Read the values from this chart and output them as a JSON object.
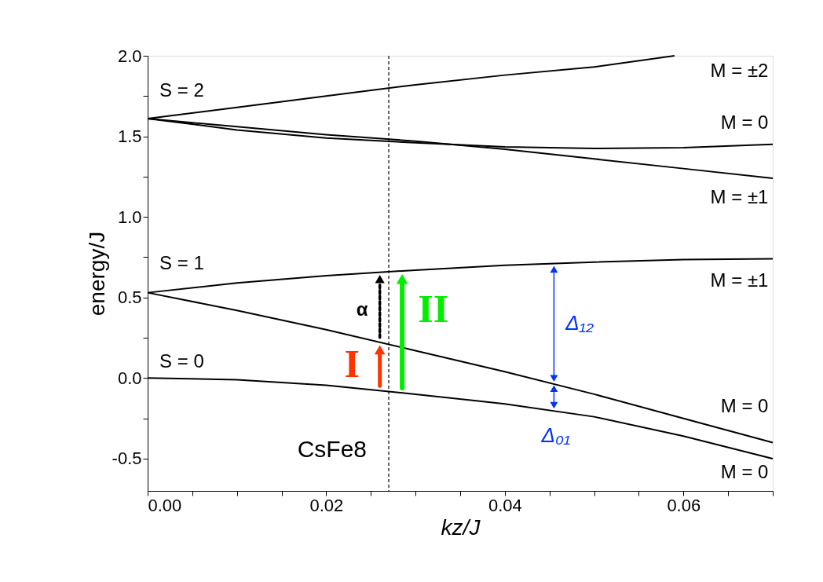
{
  "chart_data": {
    "type": "line",
    "xlabel": "kz/J",
    "ylabel": "energy/J",
    "xlim": [
      0,
      0.07
    ],
    "ylim": [
      -0.7,
      2.0
    ],
    "xticks": [
      {
        "value": 0,
        "label": "0.00"
      },
      {
        "value": 0.005,
        "label": null
      },
      {
        "value": 0.01,
        "label": null
      },
      {
        "value": 0.015,
        "label": null
      },
      {
        "value": 0.02,
        "label": "0.02"
      },
      {
        "value": 0.025,
        "label": null
      },
      {
        "value": 0.03,
        "label": null
      },
      {
        "value": 0.035,
        "label": null
      },
      {
        "value": 0.04,
        "label": "0.04"
      },
      {
        "value": 0.045,
        "label": null
      },
      {
        "value": 0.05,
        "label": null
      },
      {
        "value": 0.055,
        "label": null
      },
      {
        "value": 0.06,
        "label": "0.06"
      },
      {
        "value": 0.065,
        "label": null
      },
      {
        "value": 0.07,
        "label": null
      }
    ],
    "yticks": [
      {
        "value": -0.5,
        "label": "-0.5"
      },
      {
        "value": -0.25,
        "label": null
      },
      {
        "value": 0,
        "label": "0.0"
      },
      {
        "value": 0.25,
        "label": null
      },
      {
        "value": 0.5,
        "label": "0.5"
      },
      {
        "value": 0.75,
        "label": null
      },
      {
        "value": 1.0,
        "label": "1.0"
      },
      {
        "value": 1.25,
        "label": null
      },
      {
        "value": 1.5,
        "label": "1.5"
      },
      {
        "value": 1.75,
        "label": null
      },
      {
        "value": 2.0,
        "label": "2.0"
      }
    ],
    "x": [
      0,
      0.01,
      0.02,
      0.03,
      0.04,
      0.05,
      0.06,
      0.07
    ],
    "series": [
      {
        "color": "#000000",
        "values": [
          0,
          -0.01,
          -0.045,
          -0.1,
          -0.16,
          -0.24,
          -0.36,
          -0.5
        ]
      },
      {
        "color": "#000000",
        "values": [
          0.53,
          0.42,
          0.3,
          0.17,
          0.04,
          -0.1,
          -0.25,
          -0.4
        ]
      },
      {
        "color": "#000000",
        "values": [
          0.53,
          0.59,
          0.635,
          0.67,
          0.7,
          0.72,
          0.735,
          0.74
        ]
      },
      {
        "color": "#000000",
        "values": [
          1.61,
          1.54,
          1.49,
          1.46,
          1.435,
          1.425,
          1.43,
          1.45
        ]
      },
      {
        "color": "#000000",
        "values": [
          1.61,
          1.56,
          1.51,
          1.47,
          1.42,
          1.36,
          1.3,
          1.24
        ]
      },
      {
        "color": "#000000",
        "x": [
          0,
          0.01,
          0.02,
          0.03,
          0.04,
          0.05,
          0.059
        ],
        "values": [
          1.61,
          1.68,
          1.75,
          1.82,
          1.88,
          1.93,
          2.0
        ]
      }
    ],
    "ref_lines": [
      {
        "axis": "x",
        "value": 0.027,
        "label": "CsFe8",
        "color": "#000000",
        "line_style": "dashed"
      }
    ],
    "annotations": [
      {
        "text": "I",
        "x": 0.026,
        "y": 0.22
      },
      {
        "text": "α",
        "x": 0.026,
        "y": 0.66
      },
      {
        "text": "II",
        "x": 0.0285,
        "y": 0.66
      },
      {
        "text": "Δ₁₂",
        "x": 0.0455,
        "y": 0.72
      },
      {
        "text": "Δ₀₁",
        "x": 0.0455,
        "y": -0.02
      },
      "S = 2",
      "S = 1",
      "S = 0",
      "M = ±2",
      "M = 0",
      "M = ±1",
      "M = ±1",
      "M = 0",
      "M = 0"
    ],
    "grid": false,
    "marker": "none",
    "line_style": "solid"
  }
}
